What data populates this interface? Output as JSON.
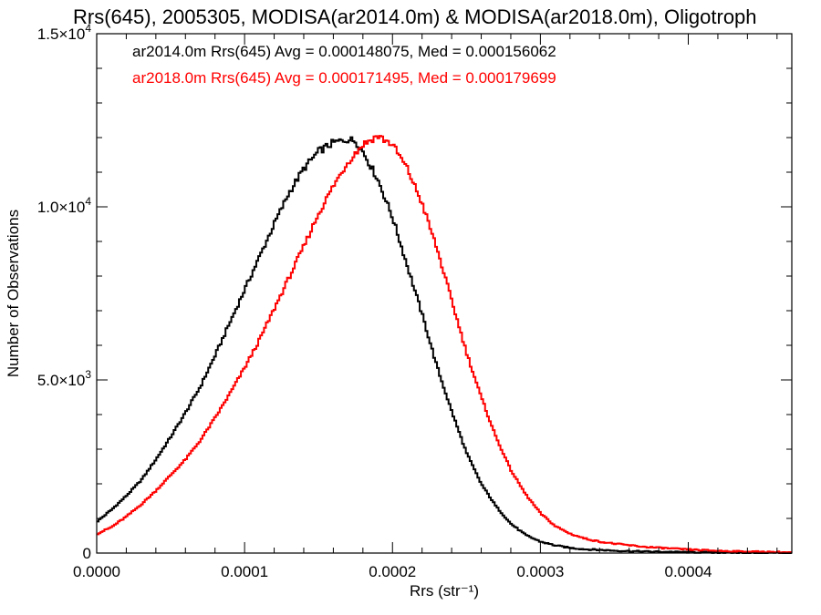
{
  "chart_data": {
    "type": "line",
    "title": "Rrs(645), 2005305, MODISA(ar2014.0m) & MODISA(ar2018.0m), Oligotroph",
    "xlabel": "Rrs (str⁻¹)",
    "ylabel": "Number of Observations",
    "xlim": [
      0.0,
      0.00047
    ],
    "ylim": [
      0,
      15000
    ],
    "x_ticks": [
      {
        "value": 0.0,
        "label": "0.0000"
      },
      {
        "value": 0.0001,
        "label": "0.0001"
      },
      {
        "value": 0.0002,
        "label": "0.0002"
      },
      {
        "value": 0.0003,
        "label": "0.0003"
      },
      {
        "value": 0.0004,
        "label": "0.0004"
      }
    ],
    "y_ticks": [
      {
        "value": 0,
        "mantissa": "0",
        "exponent": ""
      },
      {
        "value": 5000,
        "mantissa": "5.0×10",
        "exponent": "3"
      },
      {
        "value": 10000,
        "mantissa": "1.0×10",
        "exponent": "4"
      },
      {
        "value": 15000,
        "mantissa": "1.5×10",
        "exponent": "4"
      }
    ],
    "legend_position": "top-left",
    "series": [
      {
        "legend": "ar2014.0m Rrs(645) Avg = 0.000148075, Med = 0.000156062",
        "color": "#000000",
        "points": [
          [
            0.0,
            900
          ],
          [
            1e-05,
            1250
          ],
          [
            2e-05,
            1650
          ],
          [
            3e-05,
            2100
          ],
          [
            4e-05,
            2700
          ],
          [
            5e-05,
            3350
          ],
          [
            6e-05,
            4050
          ],
          [
            7e-05,
            4800
          ],
          [
            8e-05,
            5700
          ],
          [
            9e-05,
            6650
          ],
          [
            0.0001,
            7600
          ],
          [
            0.00011,
            8550
          ],
          [
            0.00012,
            9500
          ],
          [
            0.00013,
            10400
          ],
          [
            0.00014,
            11100
          ],
          [
            0.00015,
            11600
          ],
          [
            0.00016,
            11850
          ],
          [
            0.00017,
            11950
          ],
          [
            0.000175,
            11900
          ],
          [
            0.00018,
            11600
          ],
          [
            0.00019,
            10800
          ],
          [
            0.0002,
            9700
          ],
          [
            0.00021,
            8300
          ],
          [
            0.00022,
            6900
          ],
          [
            0.00023,
            5400
          ],
          [
            0.00024,
            4100
          ],
          [
            0.00025,
            2900
          ],
          [
            0.00026,
            2000
          ],
          [
            0.00027,
            1350
          ],
          [
            0.00028,
            850
          ],
          [
            0.00029,
            520
          ],
          [
            0.0003,
            330
          ],
          [
            0.00031,
            220
          ],
          [
            0.00032,
            150
          ],
          [
            0.00033,
            110
          ],
          [
            0.00035,
            70
          ],
          [
            0.00037,
            45
          ],
          [
            0.0004,
            25
          ],
          [
            0.00043,
            12
          ],
          [
            0.00047,
            5
          ]
        ]
      },
      {
        "legend": "ar2018.0m Rrs(645) Avg = 0.000171495, Med = 0.000179699",
        "color": "#ff0000",
        "points": [
          [
            0.0,
            550
          ],
          [
            1e-05,
            750
          ],
          [
            2e-05,
            1050
          ],
          [
            3e-05,
            1400
          ],
          [
            4e-05,
            1800
          ],
          [
            5e-05,
            2250
          ],
          [
            6e-05,
            2700
          ],
          [
            7e-05,
            3250
          ],
          [
            8e-05,
            3900
          ],
          [
            9e-05,
            4600
          ],
          [
            0.0001,
            5350
          ],
          [
            0.00011,
            6150
          ],
          [
            0.00012,
            7050
          ],
          [
            0.00013,
            7950
          ],
          [
            0.00014,
            8850
          ],
          [
            0.00015,
            9800
          ],
          [
            0.00016,
            10600
          ],
          [
            0.00017,
            11300
          ],
          [
            0.00018,
            11800
          ],
          [
            0.00019,
            12050
          ],
          [
            0.0002,
            11800
          ],
          [
            0.00021,
            11100
          ],
          [
            0.00022,
            10100
          ],
          [
            0.00023,
            8800
          ],
          [
            0.00024,
            7300
          ],
          [
            0.00025,
            5800
          ],
          [
            0.00026,
            4500
          ],
          [
            0.00027,
            3350
          ],
          [
            0.00028,
            2400
          ],
          [
            0.00029,
            1700
          ],
          [
            0.0003,
            1150
          ],
          [
            0.00031,
            780
          ],
          [
            0.00032,
            560
          ],
          [
            0.00033,
            420
          ],
          [
            0.00034,
            330
          ],
          [
            0.00035,
            270
          ],
          [
            0.00037,
            180
          ],
          [
            0.0004,
            100
          ],
          [
            0.00043,
            50
          ],
          [
            0.00047,
            20
          ]
        ]
      }
    ]
  }
}
